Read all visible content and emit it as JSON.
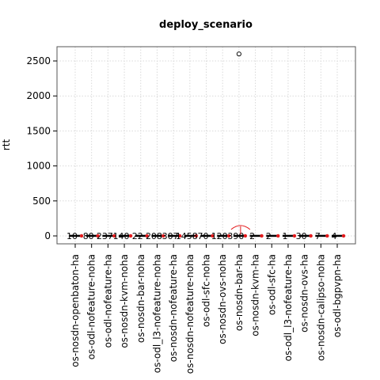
{
  "chart_data": {
    "type": "box",
    "title": "deploy_scenario",
    "ylabel": "rtt",
    "xlabel": "",
    "ylim": [
      -150,
      2700
    ],
    "yticks": [
      0,
      500,
      1000,
      1500,
      2000,
      2500
    ],
    "grid": true,
    "categories": [
      "os-nosdn-openbaton-ha",
      "os-odl-nofeature-noha",
      "os-odl-nofeature-ha",
      "os-nosdn-kvm-noha",
      "os-nosdn-bar-noha",
      "os-odl_l3-nofeature-noha",
      "os-nosdn-nofeature-ha",
      "os-nosdn-nofeature-noha",
      "os-odl-sfc-noha",
      "os-nosdn-ovs-noha",
      "os-nosdn-bar-ha",
      "os-nosdn-kvm-ha",
      "os-odl-sfc-ha",
      "os-odl_l3-nofeature-ha",
      "os-nosdn-ovs-ha",
      "os-nosdn-calipso-noha",
      "os-odl-bgpvpn-ha"
    ],
    "medians": [
      1,
      1,
      1,
      1,
      1,
      1,
      1,
      1,
      1,
      1,
      1,
      1,
      1,
      1,
      1,
      1,
      1
    ],
    "means": [
      1,
      1,
      1,
      1,
      1,
      1,
      1,
      1,
      1,
      1,
      80,
      1,
      1,
      1,
      1,
      1,
      1
    ],
    "outliers": [
      {
        "category": "os-nosdn-bar-ha",
        "value": 2600
      }
    ],
    "counts": [
      "10",
      "80",
      "237",
      "140",
      "22",
      "208",
      "307",
      "1458",
      "70",
      "120",
      "390",
      "2",
      "2",
      "1",
      "30",
      "7",
      "4"
    ],
    "annotation": {
      "category": "os-nosdn-bar-ha",
      "mean_ci": [
        20,
        160
      ]
    }
  }
}
